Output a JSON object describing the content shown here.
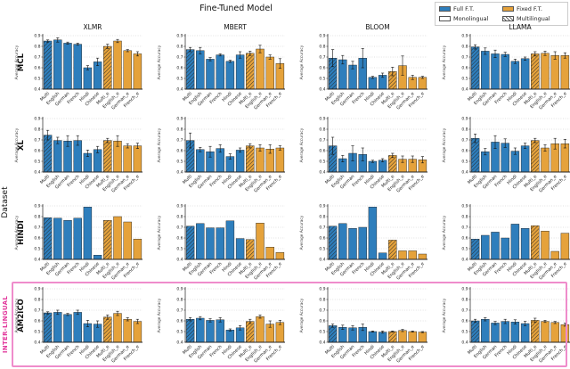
{
  "figure": {
    "title": "Fine-Tuned Model"
  },
  "legend": {
    "items": [
      {
        "label": "Full F.T.",
        "swatch": "full"
      },
      {
        "label": "Fixed F.T.",
        "swatch": "fixed"
      },
      {
        "label": "Monolingual",
        "swatch": "mono"
      },
      {
        "label": "Multilingual",
        "swatch": "multi"
      }
    ]
  },
  "side_labels": {
    "dataset": "Dataset",
    "inter_lingual": "INTER-LINGUAL"
  },
  "chart_data": {
    "type": "bar",
    "title": "Fine-Tuned Model",
    "columns": [
      "XLMR",
      "MBERT",
      "BLOOM",
      "LLAMA"
    ],
    "categories": [
      "Multi",
      "English",
      "German",
      "French",
      "Hindi",
      "Chinese",
      "Multi_e",
      "English_e",
      "German_e",
      "French_e"
    ],
    "ylabel": "Average Accuracy",
    "ylim": [
      0.4,
      0.9
    ],
    "yticks": [
      0.4,
      0.5,
      0.6,
      0.7,
      0.8,
      0.9
    ],
    "ytick_labels": [
      "0.4",
      "0.5",
      "0.6",
      "0.7",
      "0.8",
      "0.9"
    ],
    "grid": "dotted-horizontal",
    "legend_position": "top-right",
    "colors": {
      "full_ft": "#2e7ebc",
      "fixed_ft": "#e5a23b",
      "hatch_stroke": "#222222",
      "bar_edge": "#1a1a1a",
      "gridline": "#c4c4c4",
      "highlight_pink": "#ef8ccb"
    },
    "blue_count": 6,
    "hatched_indices": [
      0,
      6
    ],
    "rows": [
      {
        "name": "MCL",
        "cells": [
          {
            "model": "XLMR",
            "values": [
              0.85,
              0.86,
              0.83,
              0.82,
              0.6,
              0.655,
              0.8,
              0.85,
              0.76,
              0.73
            ],
            "errors": [
              0.01,
              0.02,
              0.01,
              0.01,
              0.02,
              0.035,
              0.02,
              0.015,
              0.01,
              0.02
            ]
          },
          {
            "model": "MBERT",
            "values": [
              0.77,
              0.76,
              0.68,
              0.72,
              0.66,
              0.72,
              0.735,
              0.775,
              0.7,
              0.64
            ],
            "errors": [
              0.02,
              0.03,
              0.015,
              0.01,
              0.01,
              0.03,
              0.02,
              0.035,
              0.02,
              0.045
            ]
          },
          {
            "model": "BLOOM",
            "values": [
              0.69,
              0.675,
              0.625,
              0.69,
              0.51,
              0.53,
              0.565,
              0.62,
              0.51,
              0.51
            ],
            "errors": [
              0.08,
              0.04,
              0.035,
              0.09,
              0.01,
              0.02,
              0.04,
              0.09,
              0.02,
              0.01
            ]
          },
          {
            "model": "LLAMA",
            "values": [
              0.795,
              0.755,
              0.73,
              0.725,
              0.66,
              0.685,
              0.73,
              0.735,
              0.715,
              0.715
            ],
            "errors": [
              0.02,
              0.03,
              0.035,
              0.02,
              0.02,
              0.015,
              0.02,
              0.02,
              0.035,
              0.025
            ]
          }
        ]
      },
      {
        "name": "XL",
        "cells": [
          {
            "model": "XLMR",
            "values": [
              0.745,
              0.695,
              0.69,
              0.695,
              0.575,
              0.61,
              0.695,
              0.69,
              0.645,
              0.645
            ],
            "errors": [
              0.045,
              0.03,
              0.05,
              0.045,
              0.03,
              0.03,
              0.02,
              0.05,
              0.02,
              0.025
            ]
          },
          {
            "model": "MBERT",
            "values": [
              0.695,
              0.61,
              0.59,
              0.62,
              0.545,
              0.605,
              0.645,
              0.625,
              0.615,
              0.625
            ],
            "errors": [
              0.07,
              0.02,
              0.05,
              0.035,
              0.025,
              0.02,
              0.02,
              0.03,
              0.04,
              0.02
            ]
          },
          {
            "model": "BLOOM",
            "values": [
              0.645,
              0.525,
              0.575,
              0.565,
              0.5,
              0.51,
              0.555,
              0.52,
              0.52,
              0.515
            ],
            "errors": [
              0.08,
              0.03,
              0.07,
              0.06,
              0.01,
              0.015,
              0.02,
              0.03,
              0.03,
              0.03
            ]
          },
          {
            "model": "LLAMA",
            "values": [
              0.715,
              0.59,
              0.68,
              0.67,
              0.595,
              0.645,
              0.695,
              0.625,
              0.665,
              0.665
            ],
            "errors": [
              0.04,
              0.03,
              0.06,
              0.04,
              0.03,
              0.025,
              0.02,
              0.03,
              0.05,
              0.04
            ]
          }
        ]
      },
      {
        "name": "HINDI",
        "cells": [
          {
            "model": "XLMR",
            "values": [
              0.79,
              0.785,
              0.765,
              0.785,
              0.89,
              0.44,
              0.765,
              0.8,
              0.75,
              0.59
            ],
            "errors": [
              0,
              0,
              0,
              0,
              0,
              0,
              0,
              0,
              0,
              0
            ]
          },
          {
            "model": "MBERT",
            "values": [
              0.71,
              0.735,
              0.695,
              0.695,
              0.76,
              0.595,
              0.585,
              0.74,
              0.515,
              0.465
            ],
            "errors": [
              0,
              0,
              0,
              0,
              0,
              0,
              0,
              0,
              0,
              0
            ]
          },
          {
            "model": "BLOOM",
            "values": [
              0.71,
              0.735,
              0.69,
              0.7,
              0.89,
              0.46,
              0.58,
              0.48,
              0.48,
              0.45
            ],
            "errors": [
              0,
              0,
              0,
              0,
              0,
              0,
              0,
              0,
              0,
              0
            ]
          },
          {
            "model": "LLAMA",
            "values": [
              0.59,
              0.625,
              0.655,
              0.6,
              0.73,
              0.69,
              0.715,
              0.665,
              0.475,
              0.645
            ],
            "errors": [
              0,
              0,
              0,
              0,
              0,
              0,
              0,
              0,
              0,
              0
            ]
          }
        ]
      },
      {
        "name": "AM2ICO",
        "cells": [
          {
            "model": "XLMR",
            "values": [
              0.675,
              0.68,
              0.66,
              0.68,
              0.575,
              0.57,
              0.635,
              0.67,
              0.615,
              0.595
            ],
            "errors": [
              0.01,
              0.02,
              0.01,
              0.02,
              0.03,
              0.03,
              0.02,
              0.02,
              0.015,
              0.02
            ]
          },
          {
            "model": "MBERT",
            "values": [
              0.615,
              0.625,
              0.605,
              0.61,
              0.515,
              0.535,
              0.595,
              0.64,
              0.57,
              0.585
            ],
            "errors": [
              0.015,
              0.015,
              0.015,
              0.02,
              0.01,
              0.02,
              0.02,
              0.015,
              0.03,
              0.02
            ]
          },
          {
            "model": "BLOOM",
            "values": [
              0.555,
              0.54,
              0.535,
              0.54,
              0.5,
              0.495,
              0.5,
              0.51,
              0.5,
              0.495
            ],
            "errors": [
              0.015,
              0.02,
              0.02,
              0.03,
              0.005,
              0.01,
              0.005,
              0.01,
              0.005,
              0.005
            ]
          },
          {
            "model": "LLAMA",
            "values": [
              0.6,
              0.615,
              0.58,
              0.595,
              0.59,
              0.575,
              0.605,
              0.595,
              0.585,
              0.565
            ],
            "errors": [
              0.015,
              0.015,
              0.015,
              0.02,
              0.02,
              0.02,
              0.02,
              0.01,
              0.01,
              0.015
            ]
          }
        ]
      }
    ]
  }
}
